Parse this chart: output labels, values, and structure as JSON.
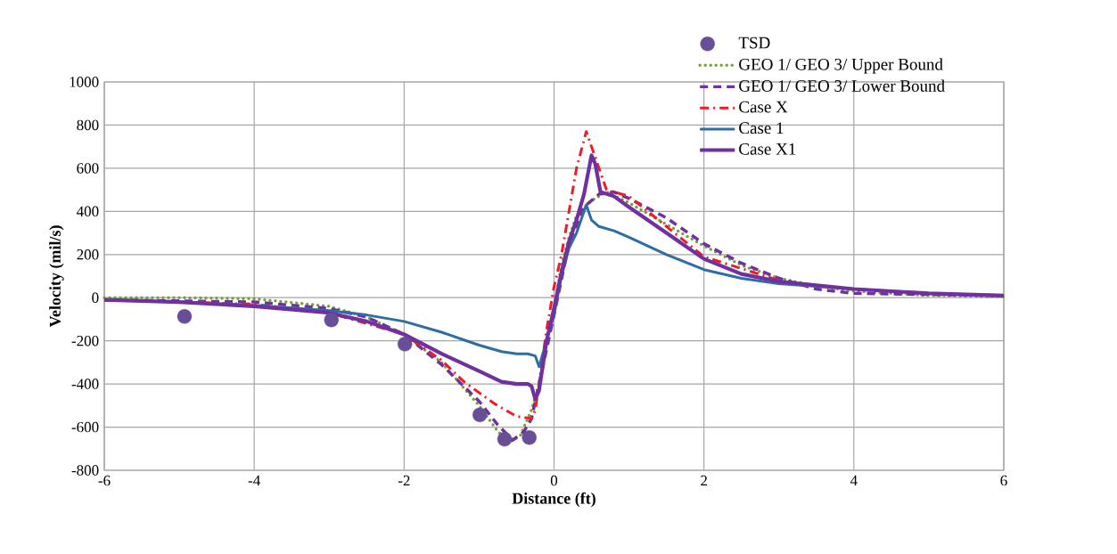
{
  "chart_data": {
    "type": "line",
    "xlabel": "Distance (ft)",
    "ylabel": "Velocity (mil/s)",
    "xlim": [
      -6,
      6
    ],
    "ylim": [
      -800,
      1000
    ],
    "xticks": [
      -6,
      -4,
      -2,
      0,
      2,
      4,
      6
    ],
    "yticks": [
      -800,
      -600,
      -400,
      -200,
      0,
      200,
      400,
      600,
      800,
      1000
    ],
    "grid": true,
    "legend": "top right",
    "series": [
      {
        "name": "TSD",
        "type": "scatter",
        "marker": "circle",
        "color": "#674e96",
        "x": [
          -4.93,
          -2.97,
          -1.99,
          -0.99,
          -0.66,
          -0.33
        ],
        "values": [
          -87,
          -103,
          -215,
          -543,
          -656,
          -648
        ]
      },
      {
        "name": "GEO 1/ GEO 3/ Upper Bound",
        "line_style": "dotted",
        "color": "#77a03a",
        "x": [
          -6,
          -5,
          -4,
          -3,
          -2.5,
          -2,
          -1.5,
          -1,
          -0.75,
          -0.6,
          -0.45,
          -0.3,
          -0.2,
          -0.1,
          0,
          0.1,
          0.2,
          0.3,
          0.5,
          0.7,
          1,
          1.5,
          2,
          2.5,
          3,
          3.5,
          4,
          5,
          6
        ],
        "values": [
          0,
          0,
          -5,
          -40,
          -90,
          -170,
          -300,
          -500,
          -620,
          -670,
          -640,
          -520,
          -400,
          -200,
          -50,
          150,
          280,
          380,
          450,
          490,
          440,
          340,
          240,
          150,
          90,
          55,
          30,
          10,
          5
        ]
      },
      {
        "name": "GEO 1/ GEO 3/ Lower Bound",
        "line_style": "dashed",
        "color": "#7030a0",
        "x": [
          -6,
          -5,
          -4,
          -3,
          -2.5,
          -2,
          -1.5,
          -1,
          -0.75,
          -0.55,
          -0.4,
          -0.3,
          -0.2,
          0,
          0.2,
          0.4,
          0.6,
          0.8,
          1,
          1.5,
          2,
          2.5,
          3,
          3.5,
          4,
          5,
          6
        ],
        "values": [
          -10,
          -15,
          -20,
          -50,
          -90,
          -170,
          -310,
          -480,
          -590,
          -660,
          -620,
          -560,
          -400,
          -80,
          250,
          420,
          480,
          490,
          460,
          370,
          250,
          160,
          90,
          40,
          20,
          15,
          10
        ]
      },
      {
        "name": "Case X",
        "line_style": "dashdot",
        "color": "#ee1c24",
        "x": [
          -6,
          -4,
          -3,
          -2,
          -1.5,
          -1.2,
          -0.8,
          -0.5,
          -0.3,
          -0.25,
          -0.2,
          -0.1,
          0,
          0.1,
          0.2,
          0.3,
          0.43,
          0.55,
          0.7,
          1,
          1.5,
          2,
          3
        ],
        "values": [
          -10,
          -30,
          -70,
          -170,
          -290,
          -390,
          -490,
          -550,
          -560,
          -520,
          -400,
          -150,
          50,
          200,
          400,
          600,
          770,
          650,
          500,
          470,
          330,
          190,
          80
        ]
      },
      {
        "name": "Case 1",
        "line_style": "solid",
        "color": "#2e6da4",
        "x": [
          -6,
          -5,
          -4,
          -3,
          -2.5,
          -2,
          -1.5,
          -1,
          -0.7,
          -0.5,
          -0.35,
          -0.25,
          -0.2,
          0,
          0.1,
          0.2,
          0.3,
          0.43,
          0.5,
          0.6,
          0.8,
          1,
          1.5,
          2,
          2.5,
          3,
          4,
          5,
          6
        ],
        "values": [
          -10,
          -20,
          -35,
          -60,
          -80,
          -110,
          -160,
          -220,
          -250,
          -260,
          -260,
          -270,
          -320,
          -80,
          100,
          230,
          300,
          430,
          360,
          330,
          310,
          280,
          200,
          130,
          90,
          65,
          40,
          20,
          10
        ]
      },
      {
        "name": "Case X1",
        "line_style": "solid",
        "color": "#7030a0",
        "x": [
          -6,
          -5,
          -4,
          -3,
          -2.5,
          -2,
          -1.5,
          -1,
          -0.7,
          -0.5,
          -0.35,
          -0.3,
          -0.25,
          -0.2,
          -0.1,
          0,
          0.1,
          0.2,
          0.3,
          0.4,
          0.5,
          0.55,
          0.62,
          0.8,
          1,
          1.5,
          2,
          2.5,
          3,
          4,
          5,
          6
        ],
        "values": [
          -10,
          -20,
          -40,
          -70,
          -110,
          -170,
          -260,
          -340,
          -390,
          -400,
          -400,
          -410,
          -470,
          -430,
          -200,
          -50,
          120,
          260,
          360,
          480,
          660,
          620,
          490,
          470,
          420,
          300,
          180,
          110,
          75,
          40,
          20,
          10
        ]
      }
    ]
  }
}
